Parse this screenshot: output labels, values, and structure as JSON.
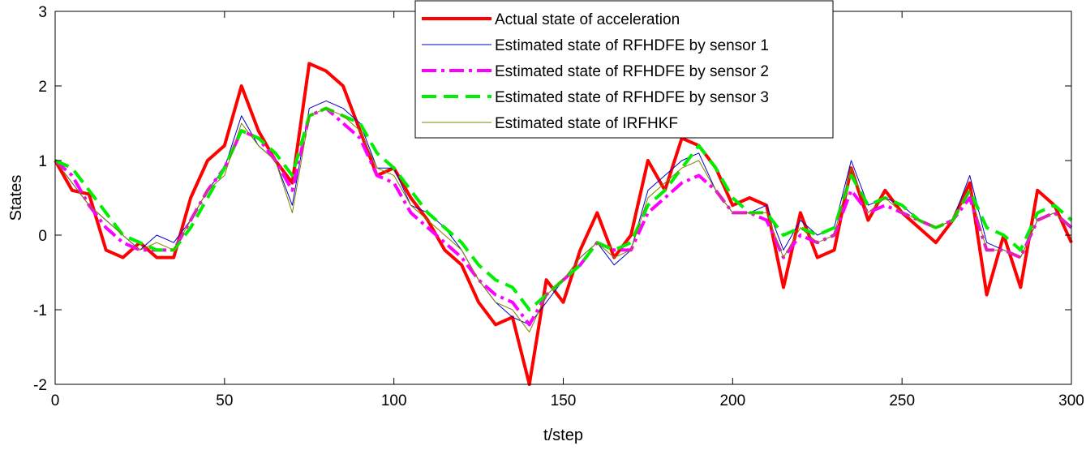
{
  "chart_data": {
    "type": "line",
    "title": "",
    "xlabel": "t/step",
    "ylabel": "States",
    "xlim": [
      0,
      300
    ],
    "ylim": [
      -2,
      3
    ],
    "xticks": [
      0,
      50,
      100,
      150,
      200,
      250,
      300
    ],
    "yticks": [
      -2,
      -1,
      0,
      1,
      2,
      3
    ],
    "grid": false,
    "legend_position": "top-center",
    "x": [
      0,
      5,
      10,
      15,
      20,
      25,
      30,
      35,
      40,
      45,
      50,
      55,
      60,
      65,
      70,
      75,
      80,
      85,
      90,
      95,
      100,
      105,
      110,
      115,
      120,
      125,
      130,
      135,
      140,
      145,
      150,
      155,
      160,
      165,
      170,
      175,
      180,
      185,
      190,
      195,
      200,
      205,
      210,
      215,
      220,
      225,
      230,
      235,
      240,
      245,
      250,
      255,
      260,
      265,
      270,
      275,
      280,
      285,
      290,
      295,
      300
    ],
    "series": [
      {
        "name": "Actual state of acceleration",
        "color": "#ff0000",
        "width": 4,
        "dash": "",
        "values": [
          1.0,
          0.6,
          0.55,
          -0.2,
          -0.3,
          -0.1,
          -0.3,
          -0.3,
          0.5,
          1.0,
          1.2,
          2.0,
          1.4,
          1.0,
          0.7,
          2.3,
          2.2,
          2.0,
          1.4,
          0.8,
          0.9,
          0.5,
          0.2,
          -0.2,
          -0.4,
          -0.9,
          -1.2,
          -1.1,
          -2.0,
          -0.6,
          -0.9,
          -0.2,
          0.3,
          -0.3,
          0.0,
          1.0,
          0.6,
          1.3,
          1.2,
          0.9,
          0.4,
          0.5,
          0.4,
          -0.7,
          0.3,
          -0.3,
          -0.2,
          0.9,
          0.2,
          0.6,
          0.3,
          0.1,
          -0.1,
          0.2,
          0.7,
          -0.8,
          0.0,
          -0.7,
          0.6,
          0.4,
          -0.1
        ]
      },
      {
        "name": "Estimated state of RFHDFE by sensor 1",
        "color": "#0000cc",
        "width": 1,
        "dash": "",
        "values": [
          1.0,
          0.7,
          0.4,
          0.2,
          0.0,
          -0.2,
          0.0,
          -0.1,
          0.2,
          0.6,
          0.9,
          1.6,
          1.2,
          1.0,
          0.4,
          1.7,
          1.8,
          1.7,
          1.5,
          0.9,
          0.9,
          0.4,
          0.3,
          0.1,
          -0.2,
          -0.6,
          -0.9,
          -1.1,
          -1.2,
          -0.9,
          -0.6,
          -0.3,
          -0.1,
          -0.4,
          -0.2,
          0.6,
          0.8,
          1.0,
          1.1,
          0.6,
          0.3,
          0.3,
          0.4,
          -0.2,
          0.2,
          0.0,
          0.1,
          1.0,
          0.4,
          0.5,
          0.4,
          0.2,
          0.1,
          0.2,
          0.8,
          -0.1,
          -0.2,
          -0.3,
          0.2,
          0.3,
          0.1
        ]
      },
      {
        "name": "Estimated state of RFHDFE by sensor 2",
        "color": "#ff00ff",
        "width": 4,
        "dash": "18 6 4 6",
        "values": [
          1.0,
          0.8,
          0.4,
          0.1,
          -0.1,
          -0.2,
          -0.2,
          -0.2,
          0.2,
          0.6,
          0.9,
          1.4,
          1.3,
          1.0,
          0.6,
          1.6,
          1.7,
          1.5,
          1.3,
          0.8,
          0.7,
          0.3,
          0.1,
          -0.1,
          -0.3,
          -0.6,
          -0.8,
          -0.9,
          -1.2,
          -0.8,
          -0.6,
          -0.4,
          -0.1,
          -0.2,
          -0.2,
          0.3,
          0.5,
          0.7,
          0.8,
          0.6,
          0.3,
          0.3,
          0.2,
          -0.3,
          0.0,
          -0.1,
          0.0,
          0.6,
          0.3,
          0.4,
          0.3,
          0.2,
          0.1,
          0.2,
          0.5,
          -0.2,
          -0.2,
          -0.3,
          0.2,
          0.3,
          0.1
        ]
      },
      {
        "name": "Estimated state of RFHDFE by sensor 3",
        "color": "#00ee00",
        "width": 4,
        "dash": "18 9",
        "values": [
          1.0,
          0.9,
          0.6,
          0.3,
          0.0,
          -0.1,
          -0.2,
          -0.2,
          0.1,
          0.5,
          0.9,
          1.4,
          1.3,
          1.1,
          0.8,
          1.6,
          1.7,
          1.6,
          1.5,
          1.1,
          0.9,
          0.6,
          0.3,
          0.1,
          -0.1,
          -0.4,
          -0.6,
          -0.7,
          -1.0,
          -0.8,
          -0.6,
          -0.4,
          -0.1,
          -0.2,
          -0.1,
          0.4,
          0.6,
          0.9,
          1.2,
          0.9,
          0.5,
          0.3,
          0.3,
          0.0,
          0.1,
          0.0,
          0.1,
          0.8,
          0.4,
          0.5,
          0.4,
          0.2,
          0.1,
          0.2,
          0.6,
          0.1,
          0.0,
          -0.2,
          0.3,
          0.4,
          0.2
        ]
      },
      {
        "name": "Estimated state of IRFHKF",
        "color": "#808000",
        "width": 1,
        "dash": "",
        "values": [
          1.0,
          0.7,
          0.4,
          0.2,
          0.0,
          -0.2,
          -0.1,
          -0.2,
          0.2,
          0.6,
          0.8,
          1.5,
          1.2,
          1.0,
          0.3,
          1.6,
          1.7,
          1.6,
          1.4,
          0.9,
          0.8,
          0.4,
          0.2,
          0.0,
          -0.2,
          -0.6,
          -0.9,
          -1.0,
          -1.3,
          -0.8,
          -0.6,
          -0.3,
          -0.1,
          -0.3,
          -0.2,
          0.5,
          0.7,
          0.9,
          1.0,
          0.6,
          0.3,
          0.3,
          0.3,
          -0.3,
          0.1,
          -0.1,
          0.0,
          0.9,
          0.3,
          0.5,
          0.3,
          0.2,
          0.1,
          0.2,
          0.6,
          -0.2,
          -0.2,
          -0.3,
          0.2,
          0.3,
          0.1
        ]
      }
    ]
  }
}
